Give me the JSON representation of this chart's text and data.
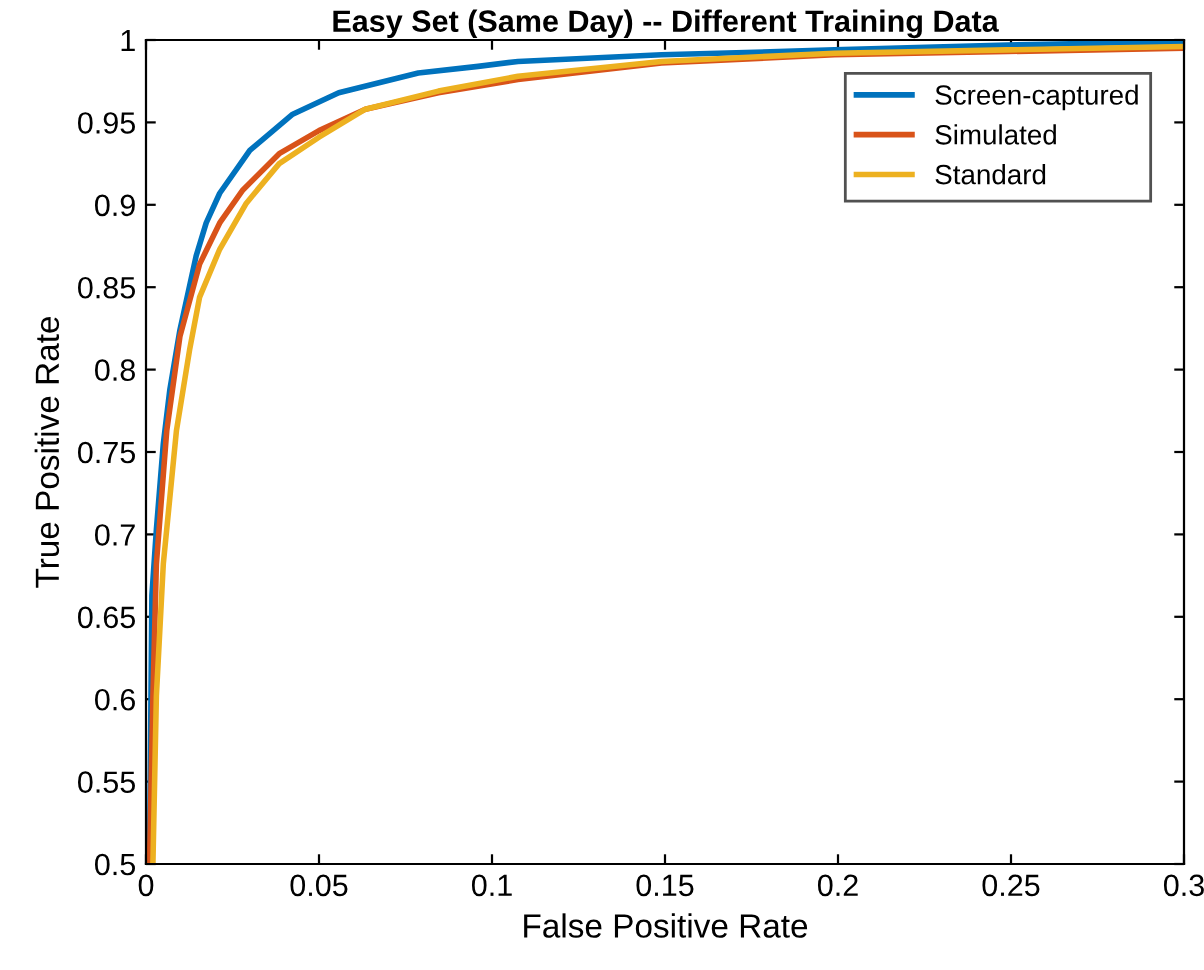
{
  "chart_data": {
    "type": "line",
    "title": "Easy Set (Same Day) -- Different Training Data",
    "xlabel": "False Positive Rate",
    "ylabel": "True Positive Rate",
    "xlim": [
      0,
      0.3
    ],
    "ylim": [
      0.5,
      1
    ],
    "xticks": [
      0,
      0.05,
      0.1,
      0.15,
      0.2,
      0.25,
      0.3
    ],
    "yticks": [
      0.5,
      0.55,
      0.6,
      0.65,
      0.7,
      0.75,
      0.8,
      0.85,
      0.9,
      0.95,
      1
    ],
    "grid": false,
    "legend": "top right",
    "line_style": "solid",
    "series": [
      {
        "name": "Screen-captured",
        "color": "#0072bd",
        "x": [
          0.001,
          0.0017,
          0.003,
          0.005,
          0.0069,
          0.0098,
          0.0145,
          0.0174,
          0.0213,
          0.03,
          0.0424,
          0.0557,
          0.0787,
          0.096,
          0.1075,
          0.149,
          0.199,
          0.249,
          0.3
        ],
        "values": [
          0.5,
          0.663,
          0.703,
          0.755,
          0.788,
          0.824,
          0.869,
          0.889,
          0.907,
          0.933,
          0.955,
          0.968,
          0.98,
          0.984,
          0.987,
          0.991,
          0.994,
          0.997,
          0.999
        ]
      },
      {
        "name": "Simulated",
        "color": "#d95319",
        "x": [
          0.001,
          0.002,
          0.003,
          0.006,
          0.0098,
          0.0155,
          0.0213,
          0.028,
          0.0385,
          0.05,
          0.0634,
          0.0845,
          0.1075,
          0.149,
          0.199,
          0.249,
          0.3
        ],
        "values": [
          0.5,
          0.602,
          0.682,
          0.763,
          0.82,
          0.864,
          0.889,
          0.909,
          0.931,
          0.945,
          0.958,
          0.968,
          0.976,
          0.986,
          0.991,
          0.993,
          0.995
        ]
      },
      {
        "name": "Standard",
        "color": "#edb120",
        "x": [
          0.002,
          0.003,
          0.005,
          0.0088,
          0.0126,
          0.0155,
          0.0213,
          0.029,
          0.0385,
          0.05,
          0.0634,
          0.0845,
          0.1075,
          0.149,
          0.199,
          0.249,
          0.3
        ],
        "values": [
          0.5,
          0.602,
          0.682,
          0.763,
          0.812,
          0.844,
          0.873,
          0.901,
          0.925,
          0.941,
          0.958,
          0.969,
          0.978,
          0.987,
          0.992,
          0.994,
          0.996
        ]
      }
    ]
  }
}
